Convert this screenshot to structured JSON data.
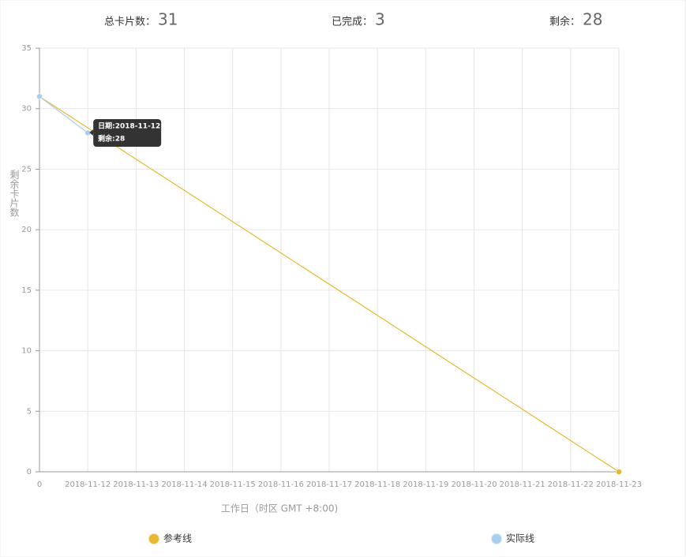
{
  "stats": [
    {
      "label": "总卡片数：",
      "value": 31
    },
    {
      "label": "已完成：",
      "value": 3
    },
    {
      "label": "剩余：",
      "value": 28
    }
  ],
  "chart_data": {
    "type": "line",
    "categories": [
      "0",
      "2018-11-12",
      "2018-11-13",
      "2018-11-14",
      "2018-11-15",
      "2018-11-16",
      "2018-11-17",
      "2018-11-18",
      "2018-11-19",
      "2018-11-20",
      "2018-11-21",
      "2018-11-22",
      "2018-11-23"
    ],
    "series": [
      {
        "name": "参考线",
        "color": "#e8b830",
        "values": [
          31,
          28.42,
          25.83,
          23.25,
          20.67,
          18.08,
          15.5,
          12.92,
          10.33,
          7.75,
          5.17,
          2.58,
          0
        ]
      },
      {
        "name": "实际线",
        "color": "#a9cfef",
        "values": [
          31,
          28,
          null,
          null,
          null,
          null,
          null,
          null,
          null,
          null,
          null,
          null,
          null
        ]
      }
    ],
    "ylim": [
      0,
      35
    ],
    "yticks": [
      0,
      5,
      10,
      15,
      20,
      25,
      30,
      35
    ],
    "grid": true,
    "x_label": "工作日（时区 GMT +8:00)",
    "y_label": "剩余卡片数",
    "tooltip": [
      "日期:2018-11-12",
      "剩余:28"
    ]
  }
}
